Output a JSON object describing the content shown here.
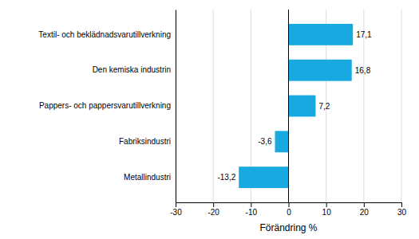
{
  "chart_data": {
    "type": "bar",
    "orientation": "horizontal",
    "categories": [
      "Metallindustri",
      "Fabriksindustri",
      "Pappers- och pappersvarutillverkning",
      "Den kemiska industrin",
      "Textil- och beklädnadsvarutillverkning"
    ],
    "values": [
      -13.2,
      -3.6,
      7.2,
      16.8,
      17.1
    ],
    "value_labels": [
      "-13,2",
      "-3,6",
      "7,2",
      "16,8",
      "17,1"
    ],
    "data_labels": true,
    "color": "#18a9e1",
    "xlabel": "Förändring %",
    "xlim": [
      -30,
      30
    ],
    "xticks": [
      -30,
      -20,
      -10,
      0,
      10,
      20,
      30
    ],
    "grid": true
  }
}
